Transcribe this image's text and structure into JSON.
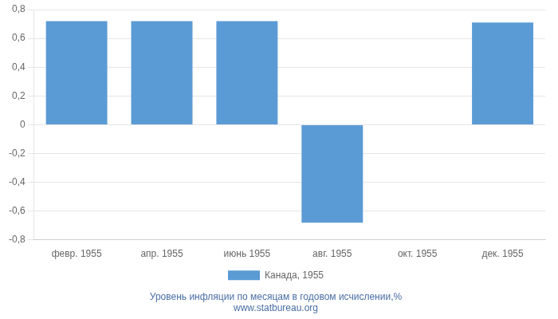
{
  "chart_data": {
    "type": "bar",
    "categories": [
      "февр. 1955",
      "апр. 1955",
      "июнь 1955",
      "авг. 1955",
      "окт. 1955",
      "дек. 1955"
    ],
    "series": [
      {
        "name": "Канада, 1955",
        "color": "#5b9bd5",
        "values": [
          0.72,
          0.72,
          0.72,
          -0.68,
          0.0,
          0.71
        ]
      }
    ],
    "ylim": [
      -0.8,
      0.8
    ],
    "yticks": [
      {
        "value": -0.8,
        "label": "-0,8"
      },
      {
        "value": -0.6,
        "label": "-0,6"
      },
      {
        "value": -0.4,
        "label": "-0,4"
      },
      {
        "value": -0.2,
        "label": "-0,2"
      },
      0,
      {
        "value": 0.2,
        "label": "0,2"
      },
      {
        "value": 0.4,
        "label": "0,4"
      },
      {
        "value": 0.6,
        "label": "0,6"
      },
      {
        "value": 0.8,
        "label": "0,8"
      }
    ],
    "grid": true,
    "legend": "bottom",
    "annotations": [
      "Уровень инфляции по месяцам в годовом исчислении,%",
      "www.statbureau.org"
    ]
  }
}
